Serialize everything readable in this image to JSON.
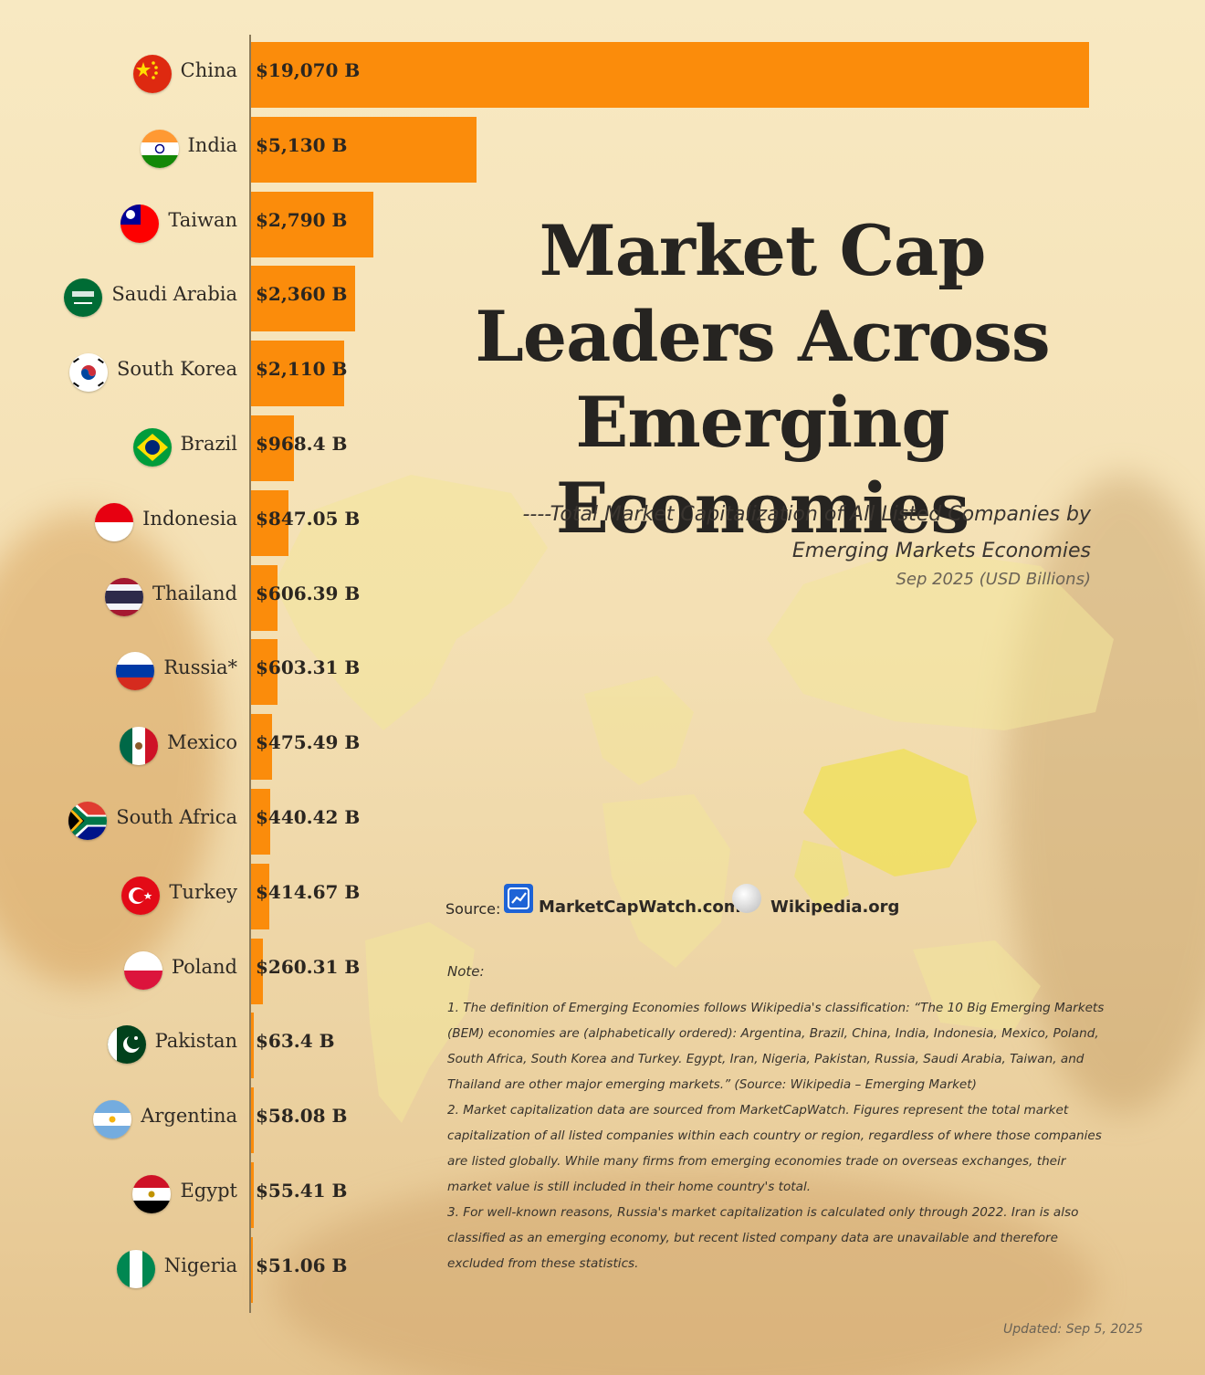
{
  "title": "Market Cap Leaders Across Emerging Economies",
  "subtitle_line1": "----Total Market Capitalization of All Listed Companies by",
  "subtitle_line2": "Emerging Markets Economies",
  "date_line": "Sep 2025 (USD Billions)",
  "source": {
    "label": "Source:",
    "items": [
      "MarketCapWatch.com",
      "Wikipedia.org"
    ]
  },
  "notes": {
    "heading": "Note:",
    "items": [
      "1. The definition of Emerging Economies follows Wikipedia's classification: “The 10 Big Emerging Markets (BEM) economies are (alphabetically ordered): Argentina, Brazil, China, India, Indonesia, Mexico, Poland, South Africa, South Korea and Turkey. Egypt, Iran, Nigeria, Pakistan, Russia, Saudi Arabia, Taiwan, and Thailand are other major emerging markets.”   (Source: Wikipedia – Emerging Market)",
      "2. Market capitalization data are sourced from MarketCapWatch. Figures represent the total market capitalization of all listed companies within each country or region, regardless of where those companies are listed globally. While many firms from emerging economies trade on overseas exchanges, their market value is still included in their home country's total.",
      "3. For well-known reasons, Russia's market capitalization is calculated only through 2022. Iran is also classified as an emerging economy, but recent listed company data are unavailable and therefore excluded from these statistics."
    ]
  },
  "updated": "Updated: Sep 5, 2025",
  "colors": {
    "bar": "#fb8c0b",
    "title": "#262421",
    "background": "#f6e6bd"
  },
  "chart_data": {
    "type": "bar",
    "orientation": "horizontal",
    "title": "Market Cap Leaders Across Emerging Economies",
    "xlim": [
      0,
      19070
    ],
    "categories": [
      "China",
      "India",
      "Taiwan",
      "Saudi Arabia",
      "South Korea",
      "Brazil",
      "Indonesia",
      "Thailand",
      "Russia*",
      "Mexico",
      "South Africa",
      "Turkey",
      "Poland",
      "Pakistan",
      "Argentina",
      "Egypt",
      "Nigeria"
    ],
    "values": [
      19070,
      5130,
      2790,
      2360,
      2110,
      968.4,
      847.05,
      606.39,
      603.31,
      475.49,
      440.42,
      414.67,
      260.31,
      63.4,
      58.08,
      55.41,
      51.06
    ],
    "value_labels": [
      "$19,070 B",
      "$5,130 B",
      "$2,790 B",
      "$2,360 B",
      "$2,110 B",
      "$968.4 B",
      "$847.05 B",
      "$606.39 B",
      "$603.31 B",
      "$475.49 B",
      "$440.42 B",
      "$414.67 B",
      "$260.31 B",
      "$63.4 B",
      "$58.08 B",
      "$55.41 B",
      "$51.06 B"
    ],
    "flags": [
      "china-flag-icon",
      "india-flag-icon",
      "taiwan-flag-icon",
      "saudi-arabia-flag-icon",
      "south-korea-flag-icon",
      "brazil-flag-icon",
      "indonesia-flag-icon",
      "thailand-flag-icon",
      "russia-flag-icon",
      "mexico-flag-icon",
      "south-africa-flag-icon",
      "turkey-flag-icon",
      "poland-flag-icon",
      "pakistan-flag-icon",
      "argentina-flag-icon",
      "egypt-flag-icon",
      "nigeria-flag-icon"
    ],
    "grid": false,
    "legend": "none"
  }
}
